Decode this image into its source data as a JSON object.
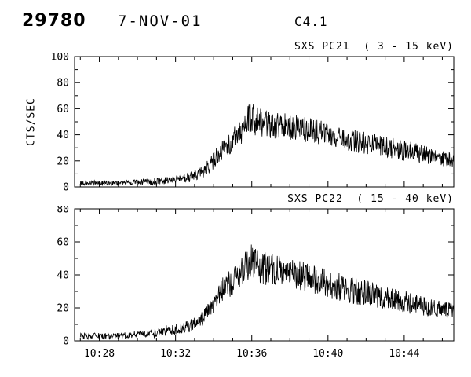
{
  "header": {
    "event_number": "29780",
    "date": "7-NOV-01",
    "goes_class": "C4.1"
  },
  "chart_data": [
    {
      "type": "line",
      "title": "SXS PC21  ( 3 - 15 keV)",
      "ylabel": "CTS/SEC",
      "ylim": [
        0,
        100
      ],
      "yticks": [
        0,
        20,
        40,
        60,
        80,
        100
      ],
      "y_minor_step": 10,
      "x_minutes_range": [
        26.7,
        46.6
      ],
      "x_minor_step": 1,
      "xticks": [
        {
          "m": 28,
          "label": "10:28"
        },
        {
          "m": 32,
          "label": "10:32"
        },
        {
          "m": 36,
          "label": "10:36"
        },
        {
          "m": 40,
          "label": "10:40"
        },
        {
          "m": 44,
          "label": "10:44"
        }
      ],
      "show_x_labels": false,
      "grid": "off",
      "legend": "none",
      "noise_seed": 7,
      "sample_step_minutes": 0.02,
      "series": [
        {
          "name": "SXS PC21 count rate (cts/sec)",
          "points_t_mean_noise": [
            [
              27.0,
              3,
              2
            ],
            [
              28,
              3,
              2
            ],
            [
              29,
              3,
              2
            ],
            [
              30,
              4,
              2
            ],
            [
              31,
              4,
              3
            ],
            [
              32,
              6,
              3
            ],
            [
              32.8,
              8,
              4
            ],
            [
              33.5,
              12,
              5
            ],
            [
              34.0,
              20,
              7
            ],
            [
              34.5,
              30,
              8
            ],
            [
              35.0,
              36,
              9
            ],
            [
              35.5,
              42,
              10
            ],
            [
              35.9,
              54,
              13
            ],
            [
              36.2,
              50,
              12
            ],
            [
              36.8,
              47,
              11
            ],
            [
              38,
              46,
              10
            ],
            [
              39,
              43,
              10
            ],
            [
              40,
              41,
              9
            ],
            [
              41,
              37,
              9
            ],
            [
              42,
              34,
              9
            ],
            [
              43,
              31,
              8
            ],
            [
              44,
              28,
              8
            ],
            [
              45,
              25,
              7
            ],
            [
              46,
              22,
              6
            ],
            [
              46.6,
              20,
              6
            ]
          ]
        }
      ]
    },
    {
      "type": "line",
      "title": "SXS PC22  ( 15 - 40 keV)",
      "ylabel": "",
      "ylim": [
        0,
        80
      ],
      "yticks": [
        0,
        20,
        40,
        60,
        80
      ],
      "y_minor_step": 10,
      "x_minutes_range": [
        26.7,
        46.6
      ],
      "x_minor_step": 1,
      "xticks": [
        {
          "m": 28,
          "label": "10:28"
        },
        {
          "m": 32,
          "label": "10:32"
        },
        {
          "m": 36,
          "label": "10:36"
        },
        {
          "m": 40,
          "label": "10:40"
        },
        {
          "m": 44,
          "label": "10:44"
        }
      ],
      "show_x_labels": true,
      "grid": "off",
      "legend": "none",
      "noise_seed": 23,
      "sample_step_minutes": 0.02,
      "series": [
        {
          "name": "SXS PC22 count rate (cts/sec)",
          "points_t_mean_noise": [
            [
              27.0,
              3,
              2
            ],
            [
              28,
              3,
              2
            ],
            [
              29,
              3,
              2
            ],
            [
              30,
              4,
              2
            ],
            [
              31,
              5,
              3
            ],
            [
              32,
              7,
              3
            ],
            [
              32.8,
              9,
              4
            ],
            [
              33.5,
              14,
              5
            ],
            [
              34.0,
              22,
              7
            ],
            [
              34.5,
              31,
              8
            ],
            [
              35.0,
              37,
              9
            ],
            [
              35.5,
              42,
              9
            ],
            [
              36.0,
              50,
              11
            ],
            [
              36.4,
              45,
              10
            ],
            [
              37,
              43,
              10
            ],
            [
              38,
              42,
              9
            ],
            [
              39,
              38,
              9
            ],
            [
              40,
              35,
              9
            ],
            [
              41,
              31,
              8
            ],
            [
              42,
              29,
              8
            ],
            [
              43,
              26,
              7
            ],
            [
              44,
              24,
              7
            ],
            [
              45,
              21,
              6
            ],
            [
              46,
              19,
              5
            ],
            [
              46.6,
              18,
              5
            ]
          ]
        }
      ]
    }
  ]
}
